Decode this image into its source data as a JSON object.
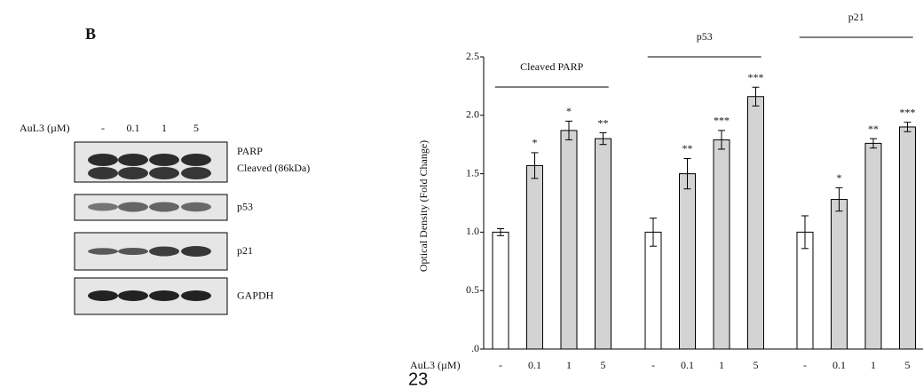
{
  "panel_label": "B",
  "blot": {
    "treatment_label": "AuL3 (µM)",
    "doses": [
      "-",
      "0.1",
      "1",
      "5"
    ],
    "bands": [
      {
        "label": "PARP",
        "sublabel": "Cleaved (86kDa)"
      },
      {
        "label": "p53"
      },
      {
        "label": "p21"
      },
      {
        "label": "GAPDH"
      }
    ]
  },
  "page_number": "23",
  "chart_data": {
    "type": "bar",
    "y_label": "Optical Density (Fold Change)",
    "x_label": "AuL3 (µM)",
    "colors": [
      "#ffffff",
      "#d3d3d3",
      "#d3d3d3",
      "#d3d3d3"
    ],
    "ylim": [
      0,
      2.5
    ],
    "yticks": [
      {
        "value": 0,
        "label": ".0"
      },
      0.5,
      {
        "value": 1,
        "label": "1.0"
      },
      1.5,
      {
        "value": 2,
        "label": "2.0"
      },
      2.5
    ],
    "groups": [
      {
        "name": "Cleaved PARP",
        "categories": [
          "-",
          "0.1",
          "1",
          "5"
        ],
        "values": [
          1.0,
          1.57,
          1.87,
          1.8
        ],
        "errors": [
          0.03,
          0.11,
          0.08,
          0.05
        ],
        "annotations": [
          null,
          "*",
          "*",
          "**"
        ]
      },
      {
        "name": "p53",
        "categories": [
          "-",
          "0.1",
          "1",
          "5"
        ],
        "values": [
          1.0,
          1.5,
          1.79,
          2.16
        ],
        "errors": [
          0.12,
          0.13,
          0.08,
          0.08
        ],
        "annotations": [
          null,
          "**",
          "***",
          "***"
        ]
      },
      {
        "name": "p21",
        "categories": [
          "-",
          "0.1",
          "1",
          "5"
        ],
        "values": [
          1.0,
          1.28,
          1.76,
          1.9
        ],
        "errors": [
          0.14,
          0.1,
          0.04,
          0.04
        ],
        "annotations": [
          null,
          "*",
          "**",
          "***"
        ]
      }
    ]
  }
}
